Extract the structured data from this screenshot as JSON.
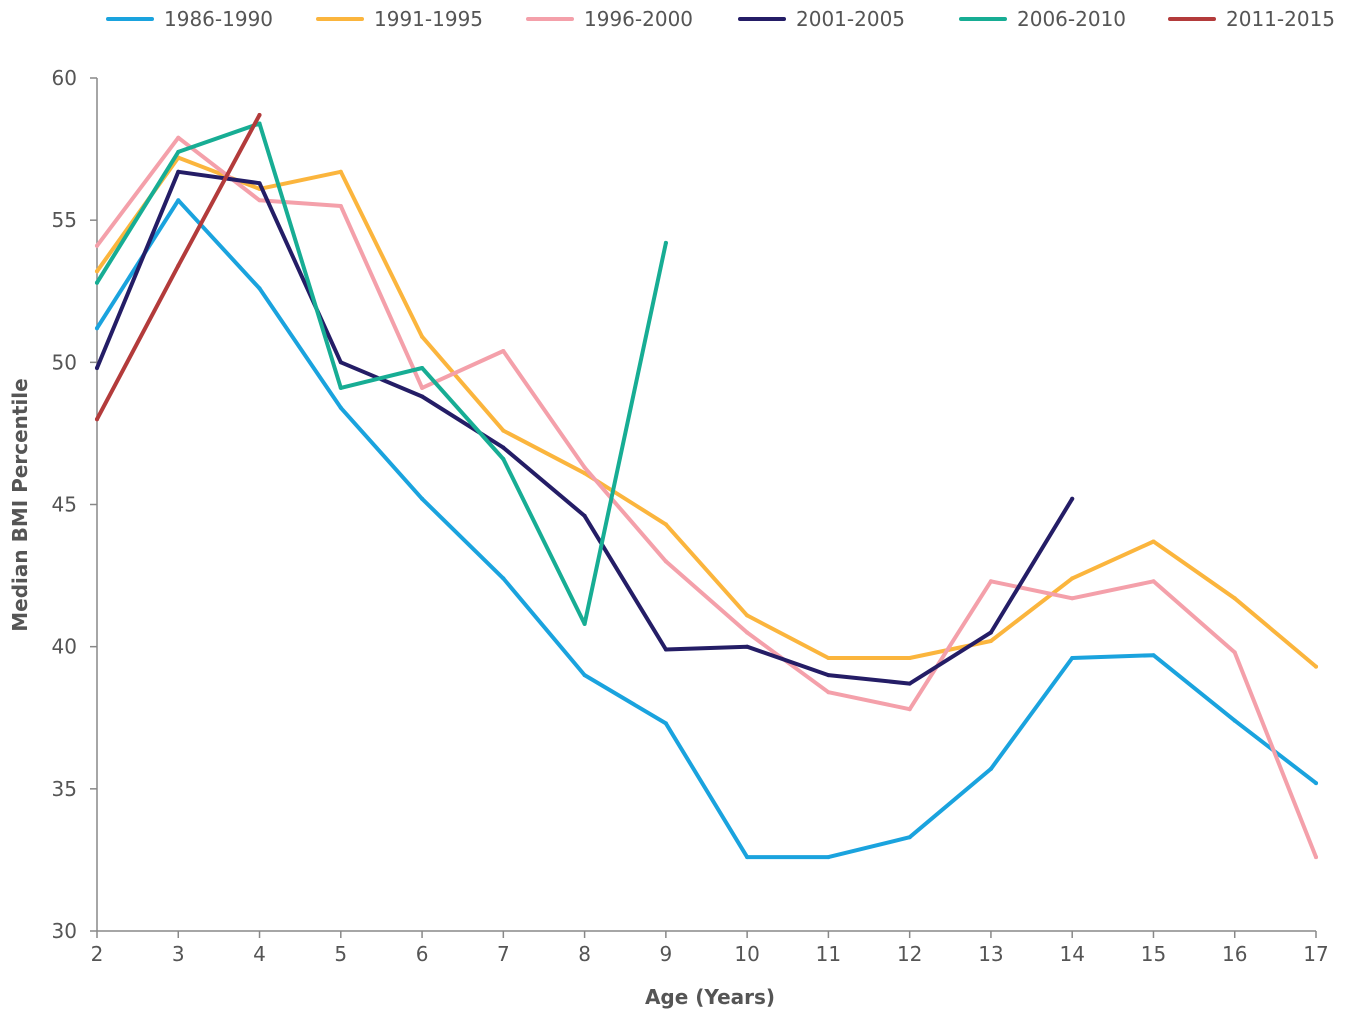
{
  "chart_data": {
    "type": "line",
    "title": "",
    "xlabel": "Age (Years)",
    "ylabel": "Median BMI Percentile",
    "xlim": [
      2,
      17
    ],
    "ylim": [
      30,
      60
    ],
    "x_ticks": [
      2,
      3,
      4,
      5,
      6,
      7,
      8,
      9,
      10,
      11,
      12,
      13,
      14,
      15,
      16,
      17
    ],
    "y_ticks": [
      30,
      35,
      40,
      45,
      50,
      55,
      60
    ],
    "grid": false,
    "legend_position": "top",
    "series": [
      {
        "name": "1986-1990",
        "color": "#1aa3de",
        "x": [
          2,
          3,
          4,
          5,
          6,
          7,
          8,
          9,
          10,
          11,
          12,
          13,
          14,
          15,
          16,
          17
        ],
        "y": [
          51.2,
          55.7,
          52.6,
          48.4,
          45.2,
          42.4,
          39.0,
          37.3,
          32.6,
          32.6,
          33.3,
          35.7,
          39.6,
          39.7,
          37.4,
          35.2
        ]
      },
      {
        "name": "1991-1995",
        "color": "#fbb53d",
        "x": [
          2,
          3,
          4,
          5,
          6,
          7,
          8,
          9,
          10,
          11,
          12,
          13,
          14,
          15,
          16,
          17
        ],
        "y": [
          53.2,
          57.2,
          56.1,
          56.7,
          50.9,
          47.6,
          46.1,
          44.3,
          41.1,
          39.6,
          39.6,
          40.2,
          42.4,
          43.7,
          41.7,
          39.3
        ]
      },
      {
        "name": "1996-2000",
        "color": "#f4a0aa",
        "x": [
          2,
          3,
          4,
          5,
          6,
          7,
          8,
          9,
          10,
          11,
          12,
          13,
          14,
          15,
          16,
          17
        ],
        "y": [
          54.1,
          57.9,
          55.7,
          55.5,
          49.1,
          50.4,
          46.3,
          43.0,
          40.5,
          38.4,
          37.8,
          42.3,
          41.7,
          42.3,
          39.8,
          32.6
        ]
      },
      {
        "name": "2001-2005",
        "color": "#241d66",
        "x": [
          2,
          3,
          4,
          5,
          6,
          7,
          8,
          9,
          10,
          11,
          12,
          13,
          14
        ],
        "y": [
          49.8,
          56.7,
          56.3,
          50.0,
          48.8,
          47.0,
          44.6,
          39.9,
          40.0,
          39.0,
          38.7,
          40.5,
          45.2
        ]
      },
      {
        "name": "2006-2010",
        "color": "#17ad94",
        "x": [
          2,
          3,
          4,
          5,
          6,
          7,
          8,
          9
        ],
        "y": [
          52.8,
          57.4,
          58.4,
          49.1,
          49.8,
          46.6,
          40.8,
          54.2
        ]
      },
      {
        "name": "2011-2015",
        "color": "#b33b3b",
        "x": [
          2,
          3,
          4
        ],
        "y": [
          48.0,
          53.4,
          58.7
        ]
      }
    ]
  }
}
